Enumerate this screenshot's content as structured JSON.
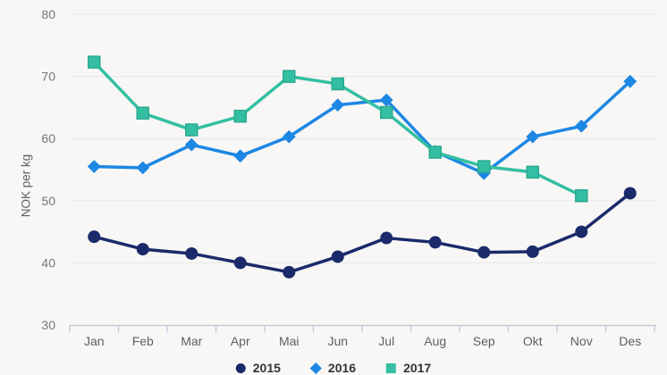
{
  "chart_data": {
    "type": "line",
    "title": "",
    "xlabel": "",
    "ylabel": "NOK per kg",
    "ylim": [
      30,
      80
    ],
    "yticks": [
      30,
      40,
      50,
      60,
      70,
      80
    ],
    "grid": "horizontal",
    "legend_position": "bottom-center",
    "categories": [
      "Jan",
      "Feb",
      "Mar",
      "Apr",
      "Mai",
      "Jun",
      "Jul",
      "Aug",
      "Sep",
      "Okt",
      "Nov",
      "Des"
    ],
    "series": [
      {
        "name": "2015",
        "marker": "circle",
        "color": "#1b2a6b",
        "values": [
          44.2,
          42.2,
          41.5,
          40.0,
          38.5,
          41.0,
          44.0,
          43.3,
          41.7,
          41.8,
          45.0,
          51.2
        ]
      },
      {
        "name": "2016",
        "marker": "diamond",
        "color": "#1d87e4",
        "values": [
          55.5,
          55.3,
          59.0,
          57.2,
          60.3,
          65.4,
          66.2,
          57.9,
          54.4,
          60.3,
          62.0,
          69.2
        ]
      },
      {
        "name": "2017",
        "marker": "square",
        "color": "#34bfa3",
        "marker_border": "#2aaa90",
        "values": [
          72.3,
          64.1,
          61.4,
          63.6,
          70.0,
          68.8,
          64.2,
          57.8,
          55.5,
          54.6,
          50.8,
          null
        ]
      }
    ]
  },
  "colors": {
    "background": "#f8f7f5",
    "gridline": "#e7e7e7",
    "axis_line": "#c5cede",
    "tick_label": "#757575",
    "category_label": "#5f5f5f",
    "axis_title": "#606060",
    "legend_label": "#333333"
  }
}
